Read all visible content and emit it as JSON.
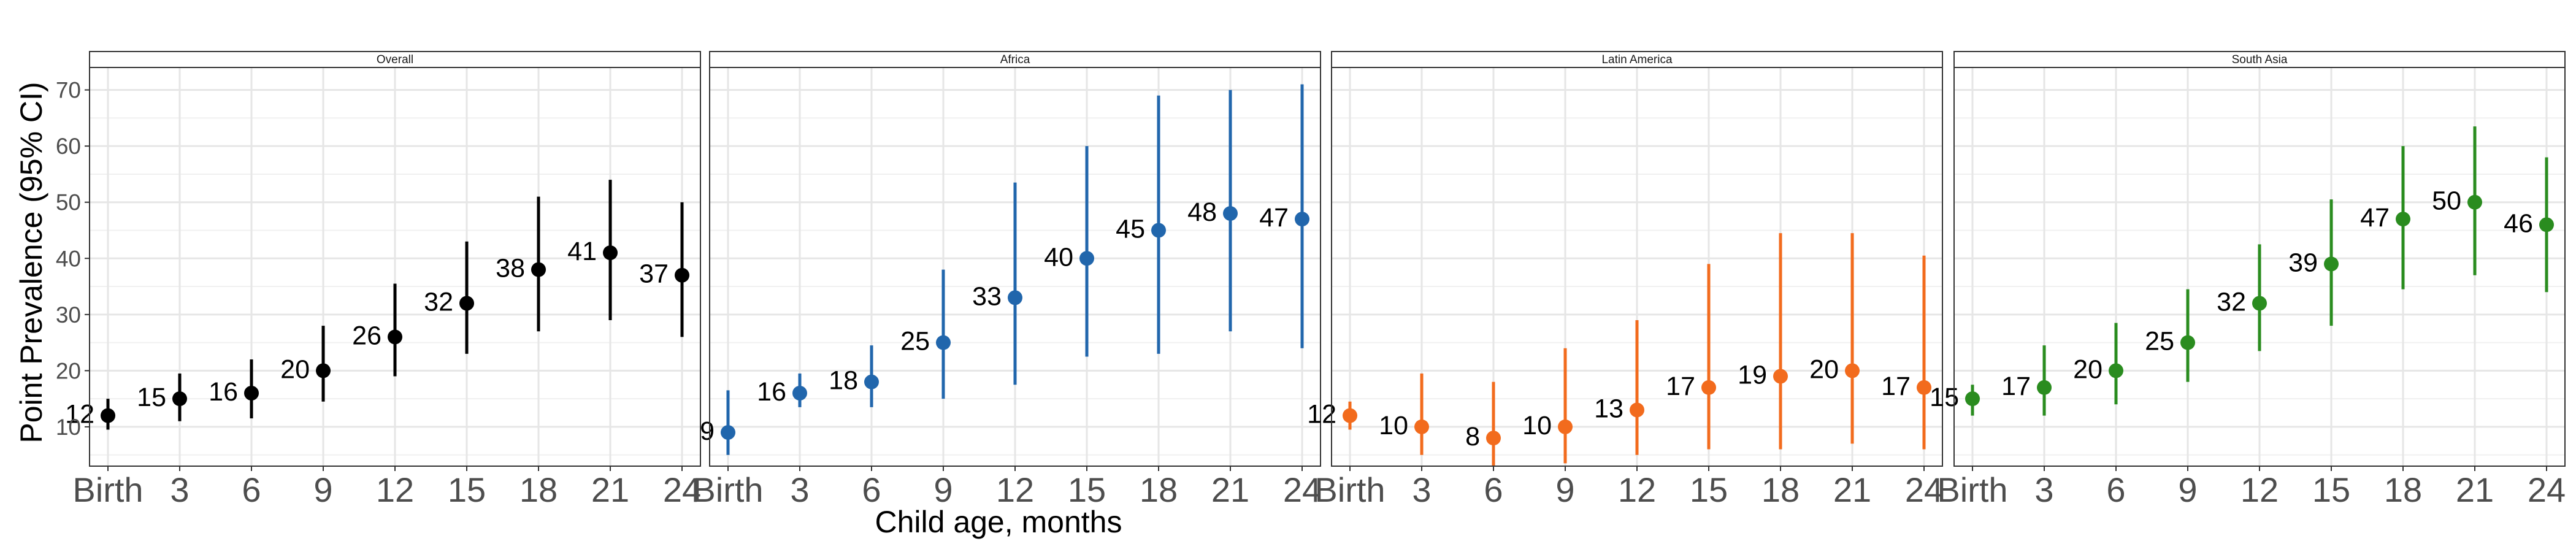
{
  "figure": {
    "xlabel": "Child age, months",
    "ylabel": "Point Prevalence (95% CI)"
  },
  "chart_data": [
    {
      "type": "scatter",
      "title": "Overall",
      "color": "#000000",
      "categories": [
        "Birth",
        "3",
        "6",
        "9",
        "12",
        "15",
        "18",
        "21",
        "24"
      ],
      "values": [
        12,
        15,
        16,
        20,
        26,
        32,
        38,
        41,
        37
      ],
      "ci_lower": [
        9.5,
        11,
        11.5,
        14.5,
        19,
        23,
        27,
        29,
        26
      ],
      "ci_upper": [
        15,
        19.5,
        22,
        28,
        35.5,
        43,
        51,
        54,
        50
      ],
      "point_labels": [
        "12",
        "15",
        "16",
        "20",
        "26",
        "32",
        "38",
        "41",
        "37"
      ],
      "ylim": [
        3,
        74
      ],
      "yticks": [
        10,
        20,
        30,
        40,
        50,
        60,
        70
      ],
      "grid": true,
      "error_bars": true
    },
    {
      "type": "scatter",
      "title": "Africa",
      "color": "#2166ac",
      "categories": [
        "Birth",
        "3",
        "6",
        "9",
        "12",
        "15",
        "18",
        "21",
        "24"
      ],
      "values": [
        9,
        16,
        18,
        25,
        33,
        40,
        45,
        48,
        47
      ],
      "ci_lower": [
        5,
        13.5,
        13.5,
        15,
        17.5,
        22.5,
        23,
        27,
        24
      ],
      "ci_upper": [
        16.5,
        19.5,
        24.5,
        38,
        53.5,
        60,
        69,
        70,
        71
      ],
      "point_labels": [
        "9",
        "16",
        "18",
        "25",
        "33",
        "40",
        "45",
        "48",
        "47"
      ],
      "ylim": [
        3,
        74
      ],
      "yticks": [
        10,
        20,
        30,
        40,
        50,
        60,
        70
      ],
      "grid": true,
      "error_bars": true
    },
    {
      "type": "scatter",
      "title": "Latin America",
      "color": "#f26b1d",
      "categories": [
        "Birth",
        "3",
        "6",
        "9",
        "12",
        "15",
        "18",
        "21",
        "24"
      ],
      "values": [
        12,
        10,
        8,
        10,
        13,
        17,
        19,
        20,
        17
      ],
      "ci_lower": [
        9.5,
        5,
        3,
        3.5,
        5,
        6,
        6,
        7,
        6
      ],
      "ci_upper": [
        14.5,
        19.5,
        18,
        24,
        29,
        39,
        44.5,
        44.5,
        40.5
      ],
      "point_labels": [
        "12",
        "10",
        "8",
        "10",
        "13",
        "17",
        "19",
        "20",
        "17"
      ],
      "ylim": [
        3,
        74
      ],
      "yticks": [
        10,
        20,
        30,
        40,
        50,
        60,
        70
      ],
      "grid": true,
      "error_bars": true
    },
    {
      "type": "scatter",
      "title": "South Asia",
      "color": "#2a8c1f",
      "categories": [
        "Birth",
        "3",
        "6",
        "9",
        "12",
        "15",
        "18",
        "21",
        "24"
      ],
      "values": [
        15,
        17,
        20,
        25,
        32,
        39,
        47,
        50,
        46
      ],
      "ci_lower": [
        12,
        12,
        14,
        18,
        23.5,
        28,
        34.5,
        37,
        34
      ],
      "ci_upper": [
        17.5,
        24.5,
        28.5,
        34.5,
        42.5,
        50.5,
        60,
        63.5,
        58
      ],
      "point_labels": [
        "15",
        "17",
        "20",
        "25",
        "32",
        "39",
        "47",
        "50",
        "46"
      ],
      "ylim": [
        3,
        74
      ],
      "yticks": [
        10,
        20,
        30,
        40,
        50,
        60,
        70
      ],
      "grid": true,
      "error_bars": true
    }
  ]
}
